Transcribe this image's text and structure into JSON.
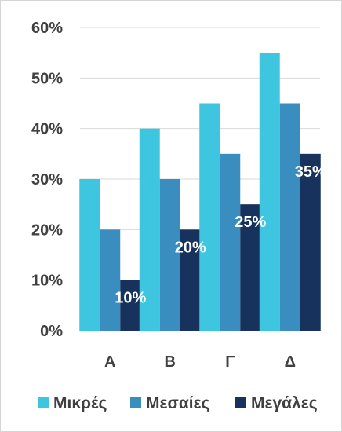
{
  "chart_data": {
    "type": "bar",
    "categories": [
      "Α",
      "Β",
      "Γ",
      "Δ"
    ],
    "series": [
      {
        "name": "Μικρές",
        "values": [
          30,
          40,
          45,
          55
        ],
        "color": "#3EC6E0"
      },
      {
        "name": "Μεσαίες",
        "values": [
          20,
          30,
          35,
          45
        ],
        "color": "#3A8EBF"
      },
      {
        "name": "Μεγάλες",
        "values": [
          10,
          20,
          25,
          35
        ],
        "color": "#17325C"
      }
    ],
    "y_ticks": [
      "0%",
      "10%",
      "20%",
      "30%",
      "40%",
      "50%",
      "60%"
    ],
    "ylim": [
      0,
      60
    ],
    "data_labels": {
      "series_index": 2,
      "texts": [
        "10%",
        "20%",
        "25%",
        "35%"
      ]
    },
    "grid": true,
    "legend_position": "bottom",
    "colors": {
      "gridline": "#d9d9d9",
      "axis": "#bfbfbf",
      "text": "#404040"
    }
  }
}
